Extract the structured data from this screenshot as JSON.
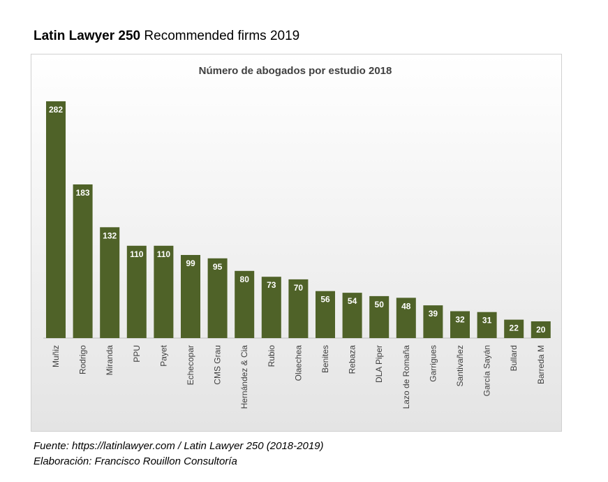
{
  "heading": {
    "bold": "Latin Lawyer 250",
    "rest": "Recommended firms 2019"
  },
  "chart_data": {
    "type": "bar",
    "title": "Número de abogados por estudio 2018",
    "categories": [
      "Muñiz",
      "Rodrigo",
      "Miranda",
      "PPU",
      "Payet",
      "Echecopar",
      "CMS Grau",
      "Hernández & Cia",
      "Rubio",
      "Olaechea",
      "Benites",
      "Rebaza",
      "DLA Piper",
      "Lazo de Romaña",
      "Garrigues",
      "Santivañez",
      "García Sayán",
      "Bullard",
      "Barreda M"
    ],
    "values": [
      282,
      183,
      132,
      110,
      110,
      99,
      95,
      80,
      73,
      70,
      56,
      54,
      50,
      48,
      39,
      32,
      31,
      22,
      20
    ],
    "xlabel": "",
    "ylabel": "",
    "ylim": [
      0,
      282
    ],
    "bar_color": "#4f6228",
    "label_color": "#ffffff",
    "grid": false,
    "legend": "none"
  },
  "footer": {
    "source": "Fuente: https://latinlawyer.com / Latin Lawyer 250 (2018-2019)",
    "credit": "Elaboración: Francisco Rouillon Consultoría"
  }
}
